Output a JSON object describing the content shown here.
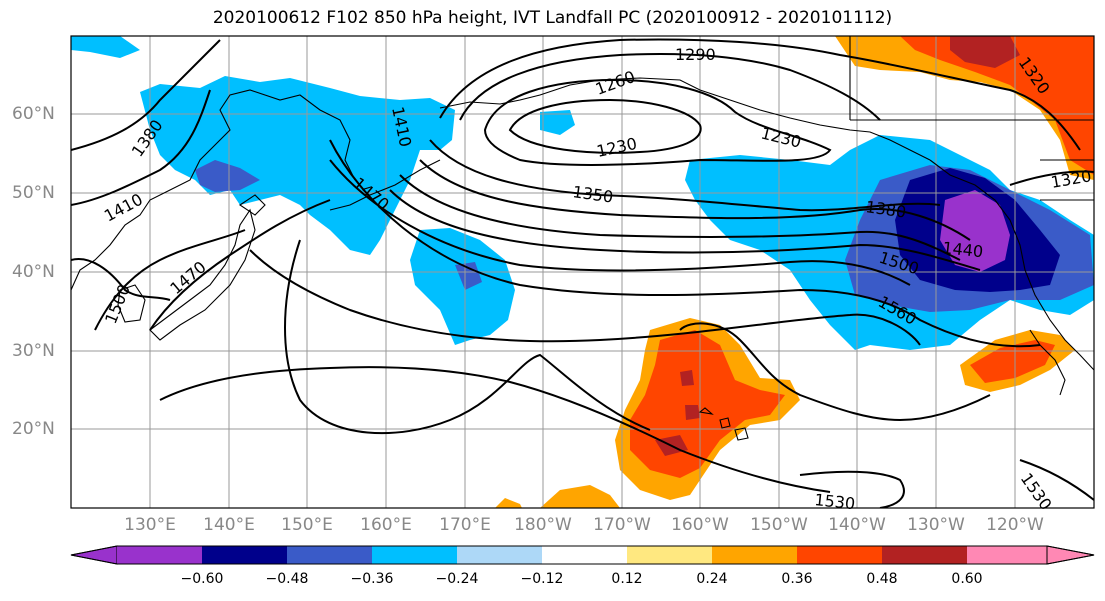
{
  "title": "2020100612 F102 850 hPa height, IVT Landfall PC (2020100912 - 2020101112)",
  "colors": {
    "neg060": "#9932CC",
    "neg048": "#00008B",
    "neg036": "#3A5BC8",
    "neg024": "#00BFFF",
    "neg012": "#ADD8F7",
    "neutral": "#FFFFFF",
    "pos012": "#FFE880",
    "pos024": "#FFA500",
    "pos036": "#FF4500",
    "pos048": "#B22222",
    "pos060": "#FF88B4",
    "contour": "#000000",
    "coast": "#000000",
    "grid": "#999999",
    "tick_label": "#888888"
  },
  "lat_labels": [
    "60°N",
    "50°N",
    "40°N",
    "30°N",
    "20°N"
  ],
  "lon_labels": [
    "130°E",
    "140°E",
    "150°E",
    "160°E",
    "170°E",
    "180°W",
    "170°W",
    "160°W",
    "150°W",
    "140°W",
    "130°W",
    "120°W"
  ],
  "colorbar": {
    "ticks": [
      "−0.60",
      "−0.48",
      "−0.36",
      "−0.24",
      "−0.12",
      "0.12",
      "0.24",
      "0.36",
      "0.48",
      "0.60"
    ],
    "colors": [
      "#9932CC",
      "#00008B",
      "#3A5BC8",
      "#00BFFF",
      "#ADD8F7",
      "#FFFFFF",
      "#FFE880",
      "#FFA500",
      "#FF4500",
      "#B22222",
      "#FF88B4"
    ]
  },
  "contour_labels": [
    "1290",
    "1260",
    "1230",
    "1230",
    "1350",
    "1380",
    "1380",
    "1410",
    "1410",
    "1470",
    "1470",
    "1440",
    "1500",
    "1560",
    "1500",
    "1530",
    "1530",
    "1320",
    "1320"
  ]
}
